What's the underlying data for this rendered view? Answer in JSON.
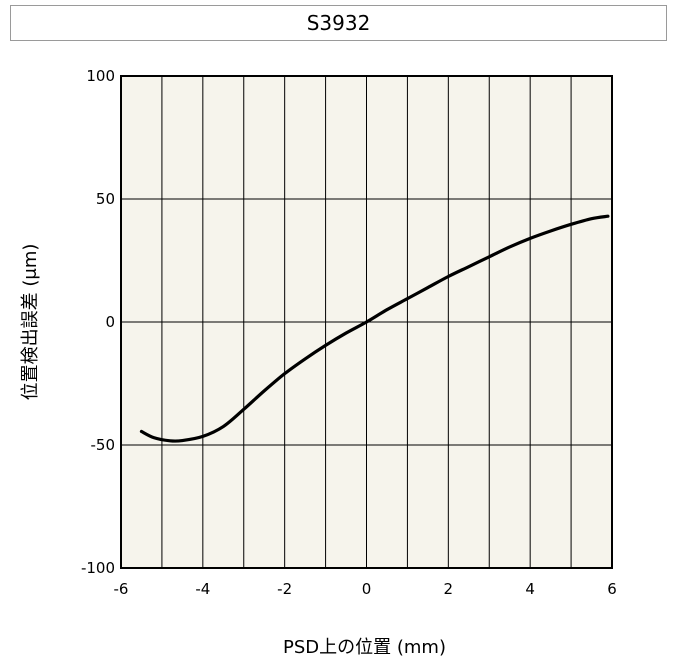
{
  "chart_data": {
    "type": "line",
    "title": "S3932",
    "xlabel": "PSD上の位置 (mm)",
    "ylabel": "位置検出誤差 (μm)",
    "xlim": [
      -6,
      6
    ],
    "ylim": [
      -100,
      100
    ],
    "x_ticks": [
      "-6",
      "-4",
      "-2",
      "0",
      "2",
      "4",
      "6"
    ],
    "y_ticks": [
      "100",
      "50",
      "0",
      "-50",
      "-100"
    ],
    "x_grid_step": 1,
    "y_grid_step": 50,
    "grid": true,
    "colors": {
      "plot_bg": "#f6f4ec",
      "grid": "#000000",
      "line": "#000000"
    },
    "series": [
      {
        "x": [
          -5.5,
          -5.2,
          -4.8,
          -4.5,
          -4.0,
          -3.5,
          -3.0,
          -2.5,
          -2.0,
          -1.5,
          -1.0,
          -0.5,
          0.0,
          0.5,
          1.0,
          1.5,
          2.0,
          2.5,
          3.0,
          3.5,
          4.0,
          4.5,
          5.0,
          5.5,
          5.9
        ],
        "y": [
          -44.5,
          -47.0,
          -48.3,
          -48.2,
          -46.5,
          -42.5,
          -35.5,
          -28.0,
          -21.0,
          -15.0,
          -9.5,
          -4.5,
          0.0,
          5.0,
          9.5,
          14.0,
          18.5,
          22.5,
          26.5,
          30.5,
          34.0,
          37.0,
          39.7,
          42.0,
          43.0
        ]
      }
    ]
  }
}
